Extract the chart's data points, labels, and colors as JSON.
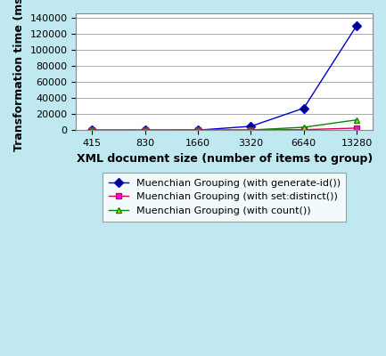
{
  "x_labels": [
    "415",
    "830",
    "1660",
    "3320",
    "6640",
    "13280"
  ],
  "x_positions": [
    0,
    1,
    2,
    3,
    4,
    5
  ],
  "series": [
    {
      "label": "Muenchian Grouping (with generate-id())",
      "y": [
        110,
        160,
        280,
        5000,
        27500,
        130000
      ],
      "color": "#0000cc",
      "marker": "D",
      "markerface": "#000080",
      "linestyle": "-"
    },
    {
      "label": "Muenchian Grouping (with set:distinct())",
      "y": [
        170,
        110,
        220,
        440,
        800,
        2800
      ],
      "color": "#cc0055",
      "marker": "s",
      "markerface": "#ff00ff",
      "linestyle": "-"
    },
    {
      "label": "Muenchian Grouping (with count())",
      "y": [
        60,
        110,
        330,
        440,
        3800,
        13000
      ],
      "color": "#008800",
      "marker": "^",
      "markerface": "#cccc00",
      "linestyle": "-"
    }
  ],
  "xlabel": "XML document size (number of items to group)",
  "ylabel": "Transformation time (ms)",
  "ylim": [
    0,
    145000
  ],
  "yticks": [
    0,
    20000,
    40000,
    60000,
    80000,
    100000,
    120000,
    140000
  ],
  "background_color": "#c0e8f0",
  "plot_bg_color": "#ffffff",
  "grid_color": "#aaaaaa",
  "axis_label_fontsize": 9,
  "tick_fontsize": 8,
  "legend_fontsize": 8
}
